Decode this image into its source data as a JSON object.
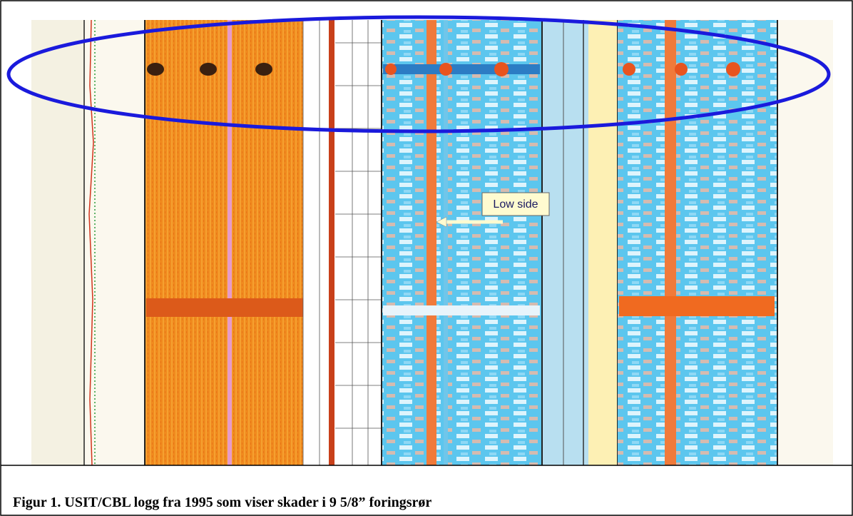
{
  "figure": {
    "annotation": "Low side",
    "caption": "Figur 1. USIT/CBL logg fra 1995 som viser skader i 9 5/8” foringsrør"
  }
}
